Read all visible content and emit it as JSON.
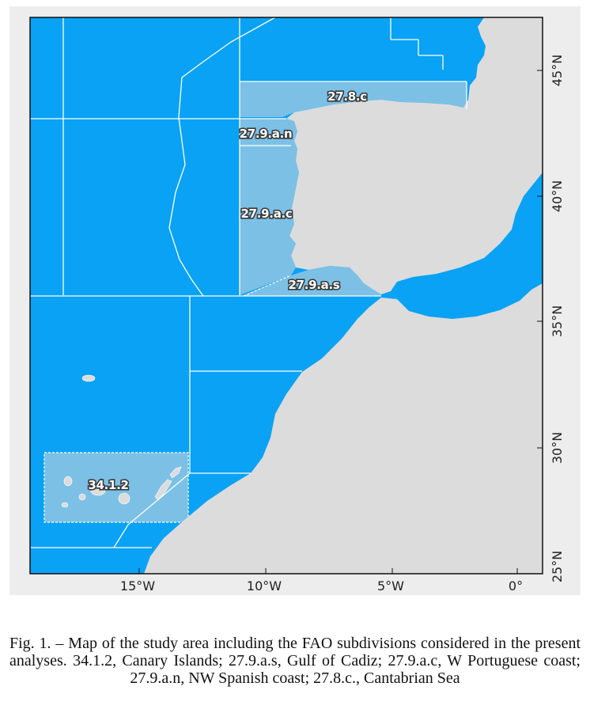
{
  "colors": {
    "sea": "#0aa2f4",
    "land": "#dcdcdc",
    "study_area": "#7cc0e6",
    "boundary": "#ffffff",
    "label_outline": "#3a3a3a"
  },
  "map": {
    "latitude_labels": [
      "45°N",
      "40°N",
      "35°N",
      "30°N",
      "25°N"
    ],
    "longitude_labels": [
      "15°W",
      "10°W",
      "5°W",
      "0°"
    ],
    "areas": [
      {
        "id": "34.1.2",
        "label": "34.1.2"
      },
      {
        "id": "27.9.a.s",
        "label": "27.9.a.s"
      },
      {
        "id": "27.9.a.c",
        "label": "27.9.a.c"
      },
      {
        "id": "27.9.a.n",
        "label": "27.9.a.n"
      },
      {
        "id": "27.8.c",
        "label": "27.8.c"
      }
    ]
  },
  "caption": "Fig. 1. – Map of the study area including the FAO subdivisions considered in the present analyses. 34.1.2, Canary Islands; 27.9.a.s, Gulf of Cadiz; 27.9.a.c, W Portuguese coast; 27.9.a.n, NW Spanish coast; 27.8.c., Cantabrian Sea"
}
